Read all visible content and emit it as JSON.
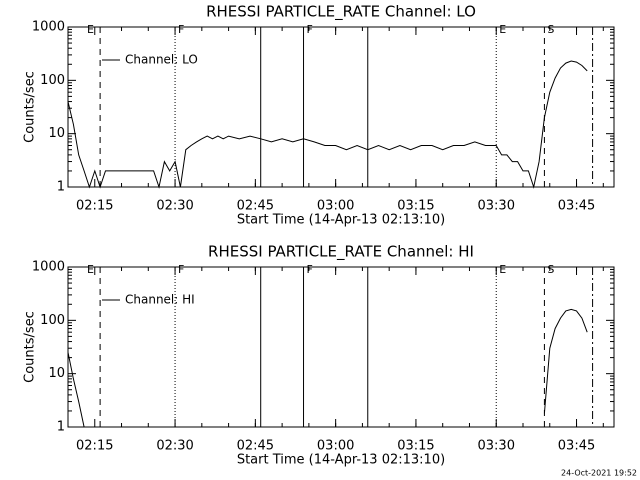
{
  "chart_data": [
    {
      "type": "line",
      "title": "RHESSI PARTICLE_RATE Channel: LO",
      "xlabel": "Start Time (14-Apr-13 02:13:10)",
      "ylabel": "Counts/sec",
      "log_y": true,
      "legend": "upper left",
      "xlim": [
        "02:10",
        "03:52"
      ],
      "xticks": [
        "02:15",
        "02:30",
        "02:45",
        "03:00",
        "03:15",
        "03:30",
        "03:45"
      ],
      "ylim": [
        1,
        1000
      ],
      "yticks": [
        1,
        10,
        100,
        1000
      ],
      "x": [
        "02:10",
        "02:11",
        "02:12",
        "02:13",
        "02:14",
        "02:15",
        "02:16",
        "02:17",
        "02:18",
        "02:20",
        "02:22",
        "02:24",
        "02:26",
        "02:27",
        "02:28",
        "02:29",
        "02:30",
        "02:31",
        "02:32",
        "02:33",
        "02:34",
        "02:35",
        "02:36",
        "02:37",
        "02:38",
        "02:39",
        "02:40",
        "02:42",
        "02:44",
        "02:46",
        "02:48",
        "02:50",
        "02:52",
        "02:54",
        "02:56",
        "02:58",
        "03:00",
        "03:02",
        "03:04",
        "03:06",
        "03:08",
        "03:10",
        "03:12",
        "03:14",
        "03:16",
        "03:18",
        "03:20",
        "03:22",
        "03:24",
        "03:26",
        "03:28",
        "03:30",
        "03:31",
        "03:32",
        "03:33",
        "03:34",
        "03:35",
        "03:36",
        "03:37",
        "03:38",
        "03:39",
        "03:40",
        "03:41",
        "03:42",
        "03:43",
        "03:44",
        "03:45",
        "03:46",
        "03:47"
      ],
      "series": [
        {
          "name": "Channel: LO",
          "color": "#000000",
          "values": [
            40,
            15,
            4,
            2,
            1,
            2,
            1,
            2,
            2,
            2,
            2,
            2,
            2,
            1,
            3,
            2,
            3,
            1,
            5,
            6,
            7,
            8,
            9,
            8,
            9,
            8,
            9,
            8,
            9,
            8,
            7,
            8,
            7,
            8,
            7,
            6,
            6,
            5,
            6,
            5,
            6,
            5,
            6,
            5,
            6,
            6,
            5,
            6,
            6,
            7,
            6,
            6,
            4,
            4,
            3,
            3,
            2,
            2,
            1,
            3,
            20,
            60,
            110,
            170,
            210,
            230,
            220,
            190,
            150
          ]
        }
      ],
      "flags": [
        {
          "x": "02:13",
          "label": "E"
        },
        {
          "x": "02:16",
          "style": "dashed"
        },
        {
          "x": "02:30",
          "style": "dotted",
          "label": "F"
        },
        {
          "x": "02:46",
          "style": "solid"
        },
        {
          "x": "02:54",
          "style": "solid",
          "label": "F"
        },
        {
          "x": "03:06",
          "style": "solid"
        },
        {
          "x": "03:30",
          "style": "dotted",
          "label": "E"
        },
        {
          "x": "03:39",
          "style": "dashed",
          "label": "S"
        },
        {
          "x": "03:48",
          "style": "dashdot"
        }
      ]
    },
    {
      "type": "line",
      "title": "RHESSI PARTICLE_RATE Channel: HI",
      "xlabel": "Start Time (14-Apr-13 02:13:10)",
      "ylabel": "Counts/sec",
      "log_y": true,
      "legend": "upper left",
      "xlim": [
        "02:10",
        "03:52"
      ],
      "xticks": [
        "02:15",
        "02:30",
        "02:45",
        "03:00",
        "03:15",
        "03:30",
        "03:45"
      ],
      "ylim": [
        1,
        1000
      ],
      "yticks": [
        1,
        10,
        100,
        1000
      ],
      "x": [
        "02:10",
        "02:11",
        "02:12",
        "02:13",
        "02:14",
        "03:39",
        "03:40",
        "03:41",
        "03:42",
        "03:43",
        "03:44",
        "03:45",
        "03:46",
        "03:47"
      ],
      "series": [
        {
          "name": "Channel: HI",
          "color": "#000000",
          "values": [
            25,
            8,
            3,
            1,
            null,
            1.8,
            30,
            70,
            110,
            150,
            160,
            150,
            110,
            60
          ]
        }
      ],
      "flags": [
        {
          "x": "02:13",
          "label": "E"
        },
        {
          "x": "02:16",
          "style": "dashed"
        },
        {
          "x": "02:30",
          "style": "dotted",
          "label": "F"
        },
        {
          "x": "02:46",
          "style": "solid"
        },
        {
          "x": "02:54",
          "style": "solid",
          "label": "F"
        },
        {
          "x": "03:06",
          "style": "solid"
        },
        {
          "x": "03:30",
          "style": "dotted",
          "label": "E"
        },
        {
          "x": "03:39",
          "style": "dashed",
          "label": "S"
        },
        {
          "x": "03:48",
          "style": "dashdot"
        }
      ]
    }
  ],
  "footer": "24-Oct-2021 19:52"
}
